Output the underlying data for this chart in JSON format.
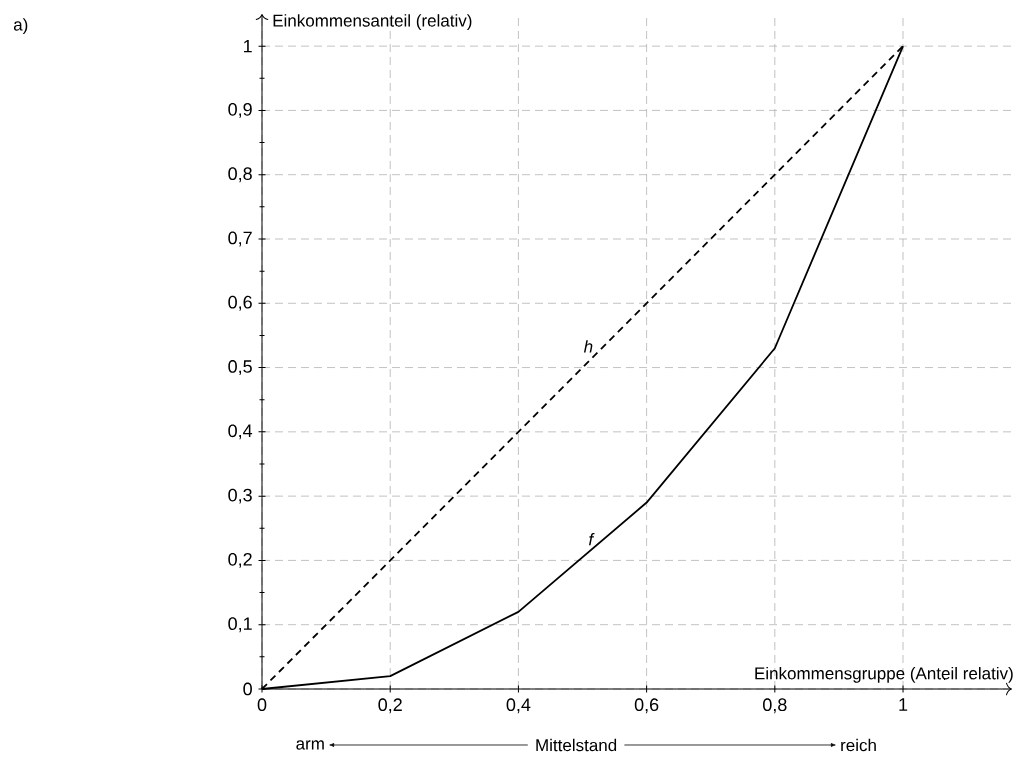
{
  "chart_data": {
    "type": "line",
    "xlabel": "Einkommensgruppe (Anteil relativ)",
    "ylabel": "Einkommensanteil (relativ)",
    "annotations": [
      "a)",
      {
        "text": "h",
        "x": 0.52,
        "y": 0.52
      },
      {
        "text": "f",
        "x": 0.52,
        "y": 0.22
      },
      "arm",
      "Mittelstand",
      "reich"
    ],
    "series": [
      {
        "x": [
          0,
          1
        ],
        "values": [
          0,
          1
        ],
        "color": "#000000",
        "line_style": "dashed"
      },
      {
        "x": [
          0,
          0.2,
          0.4,
          0.6,
          0.8,
          1
        ],
        "values": [
          0,
          0.02,
          0.12,
          0.29,
          0.53,
          1
        ],
        "color": "#000000",
        "line_style": "solid"
      }
    ],
    "xlim": [
      0,
      1.17
    ],
    "ylim": [
      0,
      1.05
    ],
    "xticks": [
      0,
      {
        "value": 0.2,
        "label": "0,2"
      },
      {
        "value": 0.4,
        "label": "0,4"
      },
      {
        "value": 0.6,
        "label": "0,6"
      },
      {
        "value": 0.8,
        "label": "0,8"
      },
      1
    ],
    "yticks": [
      0,
      {
        "value": 0.05,
        "label": null
      },
      {
        "value": 0.1,
        "label": "0,1"
      },
      {
        "value": 0.15,
        "label": null
      },
      {
        "value": 0.2,
        "label": "0,2"
      },
      {
        "value": 0.25,
        "label": null
      },
      {
        "value": 0.3,
        "label": "0,3"
      },
      {
        "value": 0.35,
        "label": null
      },
      {
        "value": 0.4,
        "label": "0,4"
      },
      {
        "value": 0.45,
        "label": null
      },
      {
        "value": 0.5,
        "label": "0,5"
      },
      {
        "value": 0.55,
        "label": null
      },
      {
        "value": 0.6,
        "label": "0,6"
      },
      {
        "value": 0.65,
        "label": null
      },
      {
        "value": 0.7,
        "label": "0,7"
      },
      {
        "value": 0.75,
        "label": null
      },
      {
        "value": 0.8,
        "label": "0,8"
      },
      {
        "value": 0.85,
        "label": null
      },
      {
        "value": 0.9,
        "label": "0,9"
      },
      {
        "value": 0.95,
        "label": null
      },
      1
    ],
    "grid": true
  }
}
